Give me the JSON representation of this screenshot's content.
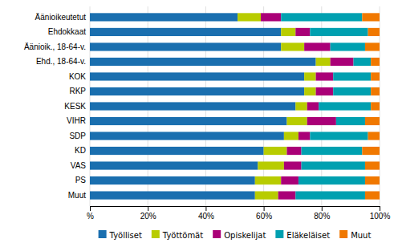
{
  "chart_data": {
    "type": "bar",
    "orientation": "horizontal",
    "stacked": true,
    "grid": true,
    "legend": "bottom",
    "categories": [
      "Äänioikeutetut",
      "Ehdokkaat",
      "Äänioik., 18-64-v.",
      "Ehd., 18-64-v.",
      "KOK",
      "RKP",
      "KESK",
      "VIHR",
      "SDP",
      "KD",
      "VAS",
      "PS",
      "Muut"
    ],
    "series": [
      {
        "name": "Työlliset",
        "color": "#1a6faf",
        "values": [
          51,
          66,
          66,
          78,
          74,
          74,
          71,
          68,
          67,
          60,
          58,
          57,
          57
        ]
      },
      {
        "name": "Työttömät",
        "color": "#b8cc00",
        "values": [
          8,
          5,
          8,
          5,
          4,
          4,
          4,
          7,
          5,
          8,
          9,
          9,
          8
        ]
      },
      {
        "name": "Opiskelijat",
        "color": "#aa0077",
        "values": [
          7,
          5,
          9,
          8,
          6,
          6,
          4,
          10,
          4,
          5,
          6,
          6,
          6
        ]
      },
      {
        "name": "Eläkeläiset",
        "color": "#00a0b0",
        "values": [
          28,
          20,
          12,
          6,
          13,
          13,
          18,
          10,
          20,
          21,
          22,
          23,
          24
        ]
      },
      {
        "name": "Muut",
        "color": "#f07800",
        "values": [
          6,
          4,
          5,
          3,
          3,
          3,
          3,
          5,
          4,
          6,
          5,
          5,
          5
        ]
      }
    ],
    "xlim": [
      0,
      100
    ],
    "xticks": [
      {
        "value": 0,
        "label": "%"
      },
      {
        "value": 20,
        "label": "20%"
      },
      {
        "value": 40,
        "label": "40%"
      },
      {
        "value": 60,
        "label": "60%"
      },
      {
        "value": 80,
        "label": "80%"
      },
      {
        "value": 100,
        "label": "100%"
      }
    ]
  }
}
